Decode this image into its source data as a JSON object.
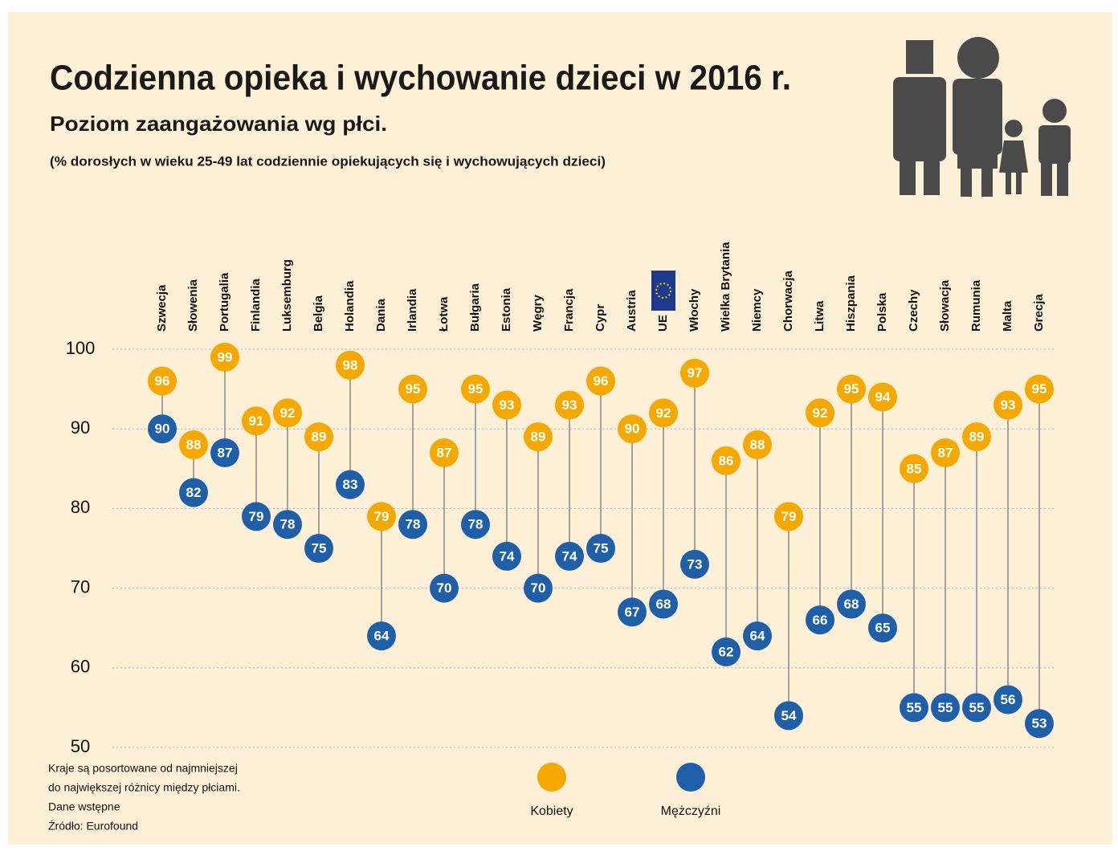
{
  "chart_data": {
    "type": "dumbbell",
    "title": "Codzienna opieka i wychowanie dzieci w 2016 r.",
    "subtitle": "Poziom zaangażowania wg płci.",
    "note": "(% dorosłych w wieku 25-49 lat codziennie opiekujących się i wychowujących dzieci)",
    "footnotes": [
      "Kraje są posortowane od najmniejszej",
      "do największej różnicy między płciami.",
      "Dane wstępne",
      "Źródło: Eurofound"
    ],
    "categories": [
      "Szwecja",
      "Słowenia",
      "Portugalia",
      "Finlandia",
      "Luksemburg",
      "Belgia",
      "Holandia",
      "Dania",
      "Irlandia",
      "Łotwa",
      "Bułgaria",
      "Estonia",
      "Węgry",
      "Francja",
      "Cypr",
      "Austria",
      "UE",
      "Włochy",
      "Wielka Brytania",
      "Niemcy",
      "Chorwacja",
      "Litwa",
      "Hiszpania",
      "Polska",
      "Czechy",
      "Słowacja",
      "Rumunia",
      "Malta",
      "Grecja"
    ],
    "series": [
      {
        "name": "Kobiety",
        "color": "#f5a800",
        "values": [
          96,
          88,
          99,
          91,
          92,
          89,
          98,
          79,
          95,
          87,
          95,
          93,
          89,
          93,
          96,
          90,
          92,
          97,
          86,
          88,
          79,
          92,
          95,
          94,
          85,
          87,
          89,
          93,
          95
        ]
      },
      {
        "name": "Mężczyźni",
        "color": "#1f5fa8",
        "values": [
          90,
          82,
          87,
          79,
          78,
          75,
          83,
          64,
          78,
          70,
          78,
          74,
          70,
          74,
          75,
          67,
          68,
          73,
          62,
          64,
          54,
          66,
          68,
          65,
          55,
          55,
          55,
          56,
          53
        ]
      }
    ],
    "ylim": [
      50,
      100
    ],
    "yticks": [
      50,
      60,
      70,
      80,
      90,
      100
    ],
    "grid": true
  }
}
